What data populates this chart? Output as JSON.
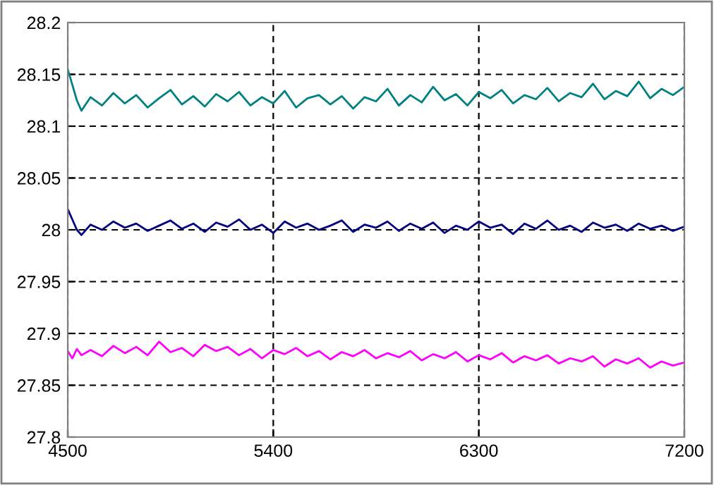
{
  "chart_data": {
    "type": "line",
    "x": [
      4500,
      4520,
      4540,
      4560,
      4600,
      4650,
      4700,
      4750,
      4800,
      4850,
      4900,
      4950,
      5000,
      5050,
      5100,
      5150,
      5200,
      5250,
      5300,
      5350,
      5400,
      5450,
      5500,
      5550,
      5600,
      5650,
      5700,
      5750,
      5800,
      5850,
      5900,
      5950,
      6000,
      6050,
      6100,
      6150,
      6200,
      6250,
      6300,
      6350,
      6400,
      6450,
      6500,
      6550,
      6600,
      6650,
      6700,
      6750,
      6800,
      6850,
      6900,
      6950,
      7000,
      7050,
      7100,
      7150,
      7200
    ],
    "series": [
      {
        "color": "#008080",
        "values": [
          28.155,
          28.14,
          28.125,
          28.115,
          28.128,
          28.12,
          28.132,
          28.122,
          28.13,
          28.118,
          28.127,
          28.135,
          28.121,
          28.129,
          28.119,
          28.131,
          28.124,
          28.133,
          28.12,
          28.128,
          28.122,
          28.134,
          28.118,
          28.127,
          28.13,
          28.121,
          28.129,
          28.117,
          28.128,
          28.124,
          28.136,
          28.12,
          28.13,
          28.123,
          28.138,
          28.125,
          28.131,
          28.12,
          28.133,
          28.127,
          28.135,
          28.122,
          28.13,
          28.126,
          28.137,
          28.124,
          28.132,
          28.128,
          28.141,
          28.126,
          28.134,
          28.129,
          28.143,
          28.127,
          28.136,
          28.13,
          28.138
        ]
      },
      {
        "color": "#000080",
        "values": [
          28.02,
          28.01,
          28.0,
          27.995,
          28.005,
          28.0,
          28.008,
          28.002,
          28.006,
          27.999,
          28.004,
          28.009,
          28.001,
          28.006,
          27.998,
          28.007,
          28.003,
          28.01,
          28.0,
          28.005,
          27.997,
          28.008,
          28.002,
          28.006,
          28.0,
          28.004,
          28.009,
          27.998,
          28.005,
          28.002,
          28.008,
          27.999,
          28.006,
          28.001,
          28.007,
          27.997,
          28.004,
          28.0,
          28.008,
          28.002,
          28.005,
          27.996,
          28.006,
          28.001,
          28.009,
          28.0,
          28.004,
          27.998,
          28.007,
          28.002,
          28.005,
          27.999,
          28.006,
          28.001,
          28.004,
          27.999,
          28.003
        ]
      },
      {
        "color": "#ff00ff",
        "values": [
          27.883,
          27.876,
          27.885,
          27.879,
          27.884,
          27.878,
          27.888,
          27.881,
          27.887,
          27.879,
          27.892,
          27.882,
          27.886,
          27.878,
          27.889,
          27.883,
          27.887,
          27.879,
          27.885,
          27.876,
          27.884,
          27.88,
          27.886,
          27.878,
          27.883,
          27.875,
          27.882,
          27.878,
          27.884,
          27.876,
          27.881,
          27.877,
          27.883,
          27.874,
          27.88,
          27.876,
          27.882,
          27.873,
          27.879,
          27.875,
          27.881,
          27.872,
          27.878,
          27.874,
          27.879,
          27.871,
          27.876,
          27.873,
          27.878,
          27.868,
          27.875,
          27.871,
          27.876,
          27.867,
          27.873,
          27.869,
          27.872
        ]
      }
    ],
    "xlim": [
      4500,
      7200
    ],
    "xticks": [
      4500,
      5400,
      6300,
      7200
    ],
    "ylim": [
      27.8,
      28.2
    ],
    "yticks": [
      27.8,
      27.85,
      27.9,
      27.95,
      28,
      28.05,
      28.1,
      28.15,
      28.2
    ],
    "grid": true,
    "line_style": "solid",
    "marker": "none",
    "legend": false
  }
}
